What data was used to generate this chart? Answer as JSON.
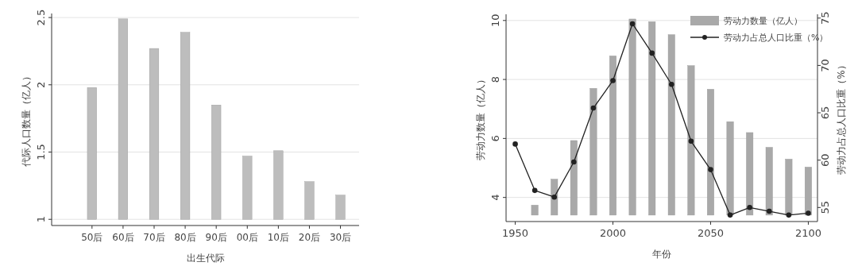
{
  "chart_data": [
    {
      "type": "bar",
      "xlabel": "出生代际",
      "ylabel": "代际人口数量（亿人）",
      "categories": [
        "50后",
        "60后",
        "70后",
        "80后",
        "90后",
        "00后",
        "10后",
        "20后",
        "30后"
      ],
      "values": [
        0.98,
        1.49,
        1.27,
        1.39,
        0.85,
        0.47,
        0.51,
        0.28,
        0.18
      ],
      "color": "#bdbdbd",
      "base": [
        1,
        1,
        1,
        1,
        1,
        1,
        1,
        1,
        1
      ],
      "ylim": [
        0.96,
        2.53
      ],
      "yticks": [
        1,
        1.5,
        2,
        2.5
      ],
      "grid": "y"
    },
    {
      "type": "bar",
      "xlabel": "年份",
      "ylabel": "劳动力数量（亿人）",
      "y2label": "劳动力占总人口比重（%）",
      "legend": "top right",
      "x": [
        1960,
        1970,
        1980,
        1990,
        2000,
        2010,
        2020,
        2030,
        2040,
        2050,
        2060,
        2070,
        2080,
        2090,
        2100
      ],
      "xlim": [
        1945.3,
        2104.7
      ],
      "xticks": [
        1950,
        2000,
        2050,
        2100
      ],
      "ylim": [
        3.21,
        10.21
      ],
      "yticks": [
        4,
        6,
        8,
        10
      ],
      "y2lim": [
        53.6,
        75.4
      ],
      "y2ticks": [
        55,
        60,
        65,
        70,
        75
      ],
      "grid": "y",
      "series": [
        {
          "name": "劳动力数量（亿人）",
          "color": "#a9a9a9",
          "base": [
            3.4,
            3.4,
            3.4,
            3.4,
            3.4,
            3.4,
            3.4,
            3.4,
            3.4,
            3.4,
            3.4,
            3.4,
            3.4,
            3.4,
            3.4
          ],
          "values": [
            0.34,
            1.22,
            2.53,
            4.3,
            5.4,
            6.65,
            6.56,
            6.12,
            5.07,
            4.27,
            3.17,
            2.8,
            2.3,
            1.9,
            1.63
          ]
        },
        {
          "name": "劳动力占总人口比重（%）",
          "type": "line",
          "axis": "y2",
          "color": "#222222",
          "marker": "circle",
          "line_style": "solid",
          "x": [
            1950,
            1960,
            1970,
            1980,
            1990,
            2000,
            2010,
            2020,
            2030,
            2040,
            2050,
            2060,
            2070,
            2080,
            2090,
            2100
          ],
          "values": [
            61.7,
            56.8,
            56.1,
            59.8,
            65.5,
            68.4,
            74.4,
            71.3,
            68.0,
            62.0,
            59.0,
            54.2,
            55.0,
            54.6,
            54.2,
            54.4
          ]
        }
      ]
    }
  ]
}
